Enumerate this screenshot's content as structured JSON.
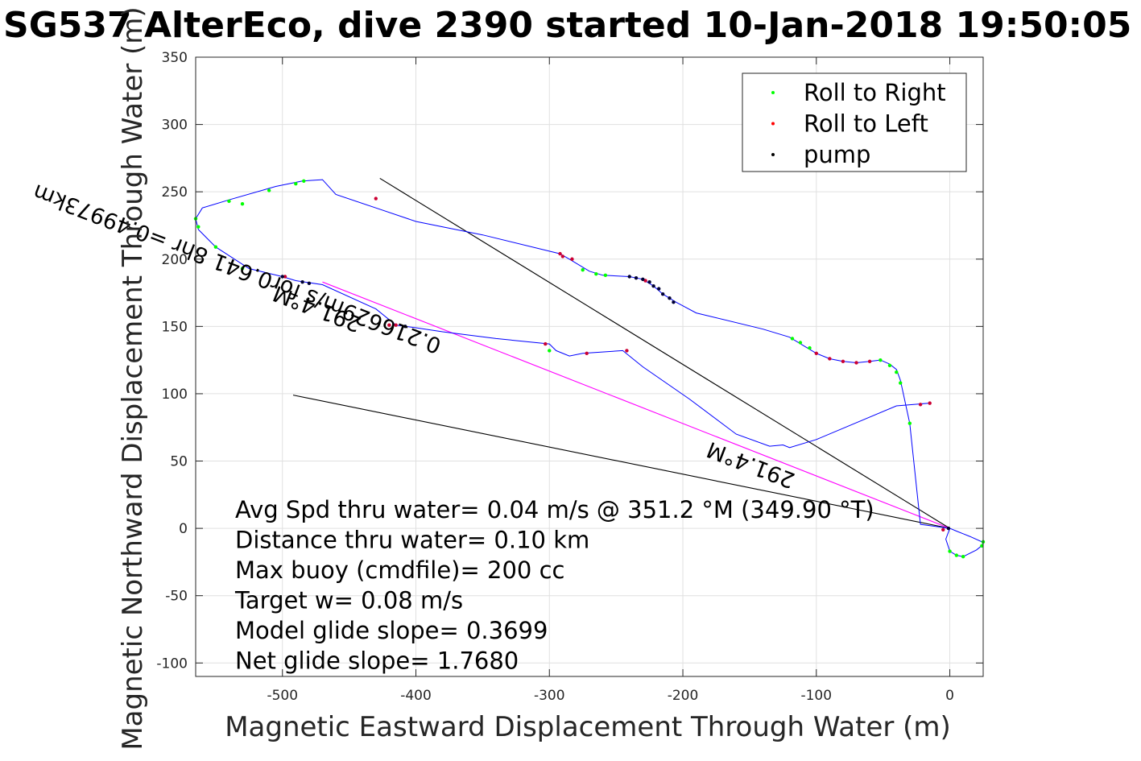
{
  "chart_data": {
    "type": "line",
    "title": "SG537 AlterEco, dive 2390 started 10-Jan-2018 19:50:05",
    "xlabel": "Magnetic Eastward Displacement Through Water (m)",
    "ylabel": "Magnetic Northward Displacement Through Water (m)",
    "xlim": [
      -565,
      25
    ],
    "ylim": [
      -110,
      350
    ],
    "xticks": [
      -500,
      -400,
      -300,
      -200,
      -100,
      0
    ],
    "yticks": [
      -100,
      -50,
      0,
      50,
      100,
      150,
      200,
      250,
      300,
      350
    ],
    "grid": true,
    "legend_position": "top-right",
    "legend": [
      {
        "label": "Roll to Right",
        "color": "#00ff00"
      },
      {
        "label": "Roll to Left",
        "color": "#ff0000"
      },
      {
        "label": "pump",
        "color": "#000000"
      }
    ],
    "track_color": "#0000ff",
    "track": [
      [
        0,
        0
      ],
      [
        5,
        -2
      ],
      [
        10,
        -4
      ],
      [
        15,
        -6
      ],
      [
        24,
        -10
      ],
      [
        25,
        -12
      ],
      [
        20,
        -16
      ],
      [
        10,
        -21
      ],
      [
        5,
        -20
      ],
      [
        0,
        -17
      ],
      [
        -3,
        -8
      ],
      [
        0,
        0
      ],
      [
        -22,
        3
      ],
      [
        -30,
        78
      ],
      [
        -37,
        110
      ],
      [
        -40,
        118
      ],
      [
        -45,
        122
      ],
      [
        -52,
        125
      ],
      [
        -60,
        124
      ],
      [
        -70,
        123
      ],
      [
        -80,
        124
      ],
      [
        -90,
        126
      ],
      [
        -100,
        130
      ],
      [
        -110,
        136
      ],
      [
        -120,
        142
      ],
      [
        -140,
        148
      ],
      [
        -190,
        160
      ],
      [
        -205,
        168
      ],
      [
        -215,
        174
      ],
      [
        -222,
        180
      ],
      [
        -230,
        185
      ],
      [
        -240,
        187
      ],
      [
        -260,
        188
      ],
      [
        -270,
        191
      ],
      [
        -285,
        200
      ],
      [
        -292,
        204
      ],
      [
        -350,
        218
      ],
      [
        -400,
        228
      ],
      [
        -430,
        238
      ],
      [
        -460,
        248
      ],
      [
        -470,
        259
      ],
      [
        -485,
        258
      ],
      [
        -505,
        254
      ],
      [
        -540,
        244
      ],
      [
        -560,
        238
      ],
      [
        -565,
        230
      ],
      [
        -563,
        222
      ],
      [
        -550,
        209
      ],
      [
        -525,
        193
      ],
      [
        -500,
        187
      ],
      [
        -490,
        184
      ],
      [
        -470,
        181
      ],
      [
        -430,
        163
      ],
      [
        -415,
        151
      ],
      [
        -400,
        149
      ],
      [
        -380,
        146
      ],
      [
        -340,
        141
      ],
      [
        -300,
        137
      ],
      [
        -295,
        132
      ],
      [
        -285,
        128
      ],
      [
        -275,
        130
      ],
      [
        -245,
        132
      ],
      [
        -230,
        120
      ],
      [
        -195,
        96
      ],
      [
        -160,
        70
      ],
      [
        -135,
        61
      ],
      [
        -125,
        62
      ],
      [
        -120,
        60
      ],
      [
        -100,
        66
      ],
      [
        -40,
        91
      ],
      [
        -15,
        93
      ]
    ],
    "roll_right_points": [
      [
        25,
        -10
      ],
      [
        24,
        -13
      ],
      [
        10,
        -21
      ],
      [
        5,
        -20
      ],
      [
        0,
        -17
      ],
      [
        -30,
        78
      ],
      [
        -37,
        108
      ],
      [
        -40,
        116
      ],
      [
        -45,
        121
      ],
      [
        -52,
        125
      ],
      [
        -112,
        138
      ],
      [
        -118,
        141
      ],
      [
        -105,
        134
      ],
      [
        -265,
        189
      ],
      [
        -258,
        188
      ],
      [
        -275,
        192
      ],
      [
        -300,
        132
      ],
      [
        -530,
        193
      ],
      [
        -550,
        209
      ],
      [
        -565,
        230
      ],
      [
        -563,
        224
      ],
      [
        -540,
        243
      ],
      [
        -530,
        241
      ],
      [
        -510,
        251
      ],
      [
        -490,
        256
      ],
      [
        -484,
        258
      ]
    ],
    "roll_left_points": [
      [
        -15,
        93
      ],
      [
        -22,
        92
      ],
      [
        -60,
        124
      ],
      [
        -70,
        123
      ],
      [
        -80,
        124
      ],
      [
        -90,
        126
      ],
      [
        -100,
        130
      ],
      [
        -283,
        200
      ],
      [
        -292,
        204
      ],
      [
        -290,
        202
      ],
      [
        -228,
        184
      ],
      [
        -415,
        151
      ],
      [
        -420,
        151
      ],
      [
        -272,
        130
      ],
      [
        -242,
        132
      ],
      [
        -303,
        137
      ],
      [
        -430,
        245
      ],
      [
        -5,
        -1
      ],
      [
        -498,
        187
      ]
    ],
    "pump_points": [
      [
        -240,
        187
      ],
      [
        -235,
        186
      ],
      [
        -230,
        185
      ],
      [
        -225,
        183
      ],
      [
        -222,
        180
      ],
      [
        -218,
        178
      ],
      [
        -215,
        174
      ],
      [
        -210,
        171
      ],
      [
        -207,
        168
      ],
      [
        -500,
        187
      ],
      [
        -485,
        183
      ],
      [
        -480,
        182
      ],
      [
        -408,
        150
      ],
      [
        -1,
        0
      ]
    ],
    "heading_lines": [
      {
        "from": [
          0,
          0
        ],
        "to": [
          -427,
          260
        ],
        "color": "#000000"
      },
      {
        "from": [
          0,
          0
        ],
        "to": [
          -492,
          99
        ],
        "color": "#000000"
      },
      {
        "from": [
          0,
          0
        ],
        "to": [
          -470,
          183
        ],
        "color": "#ff00ff"
      }
    ],
    "rotated_labels": [
      {
        "text": "291.4°M",
        "at": [
          -440,
          156
        ],
        "angle_deg": 201
      },
      {
        "text": "0.216629m/s for0.641 8hr =0.49973km",
        "at": [
          -380,
          140
        ],
        "angle_deg": 201
      },
      {
        "text": "291.4°M",
        "at": [
          -115,
          40
        ],
        "angle_deg": 201
      }
    ],
    "annotations": [
      "Avg Spd thru water=  0.04 m/s @ 351.2 °M (349.90 °T)",
      "Distance thru water=  0.10 km",
      "Max buoy (cmdfile)= 200 cc",
      "Target w= 0.08 m/s",
      "Model glide slope= 0.3699",
      "Net glide slope= 1.7680"
    ]
  }
}
